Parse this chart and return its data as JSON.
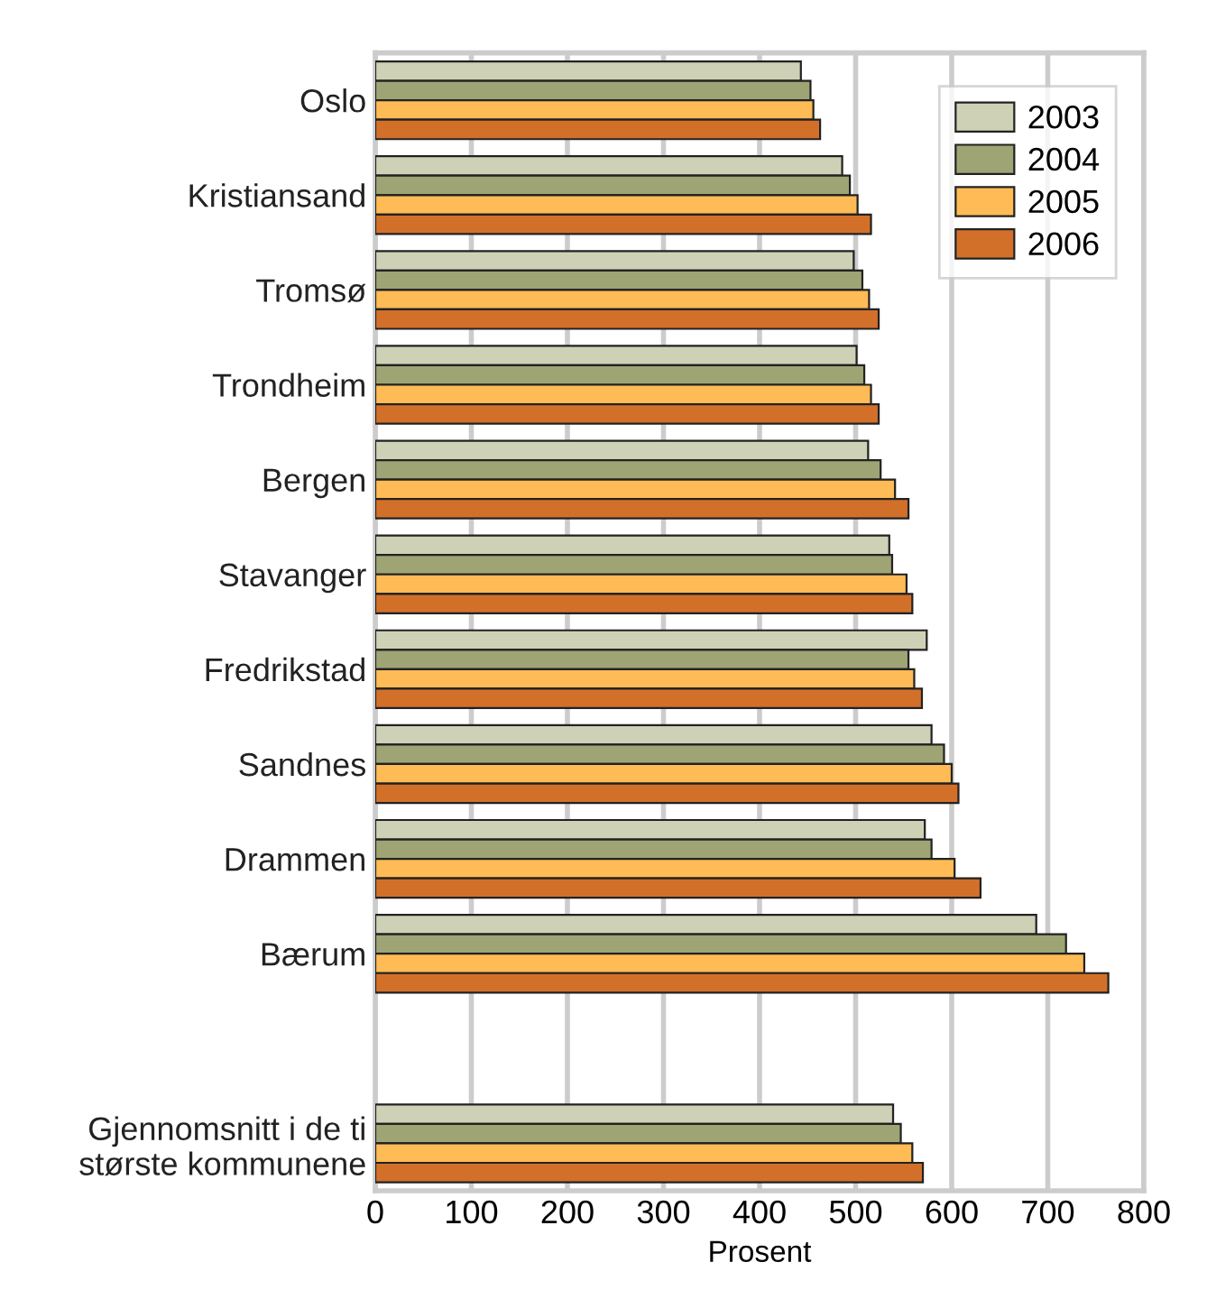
{
  "chart_data": {
    "type": "bar",
    "orientation": "horizontal",
    "xlabel": "Prosent",
    "categories": [
      "Oslo",
      "Kristiansand",
      "Tromsø",
      "Trondheim",
      "Bergen",
      "Stavanger",
      "Fredrikstad",
      "Sandnes",
      "Drammen",
      "Bærum",
      null,
      "Gjennomsnitt i de ti\nstørste kommunene"
    ],
    "series": [
      {
        "name": "2003",
        "color": "#cfd1b6",
        "values": [
          443,
          486,
          498,
          501,
          513,
          535,
          574,
          579,
          572,
          688,
          null,
          539
        ]
      },
      {
        "name": "2004",
        "color": "#9ea474",
        "values": [
          453,
          494,
          507,
          509,
          526,
          538,
          555,
          592,
          579,
          719,
          null,
          547
        ]
      },
      {
        "name": "2005",
        "color": "#ffbb55",
        "values": [
          456,
          502,
          514,
          516,
          541,
          553,
          561,
          600,
          603,
          738,
          null,
          559
        ]
      },
      {
        "name": "2006",
        "color": "#d2702a",
        "values": [
          463,
          516,
          524,
          524,
          555,
          559,
          569,
          607,
          630,
          763,
          null,
          570
        ]
      }
    ],
    "xlim": [
      0,
      800
    ],
    "xticks": [
      0,
      100,
      200,
      300,
      400,
      500,
      600,
      700,
      800
    ],
    "grid": "x",
    "legend": "top right"
  }
}
